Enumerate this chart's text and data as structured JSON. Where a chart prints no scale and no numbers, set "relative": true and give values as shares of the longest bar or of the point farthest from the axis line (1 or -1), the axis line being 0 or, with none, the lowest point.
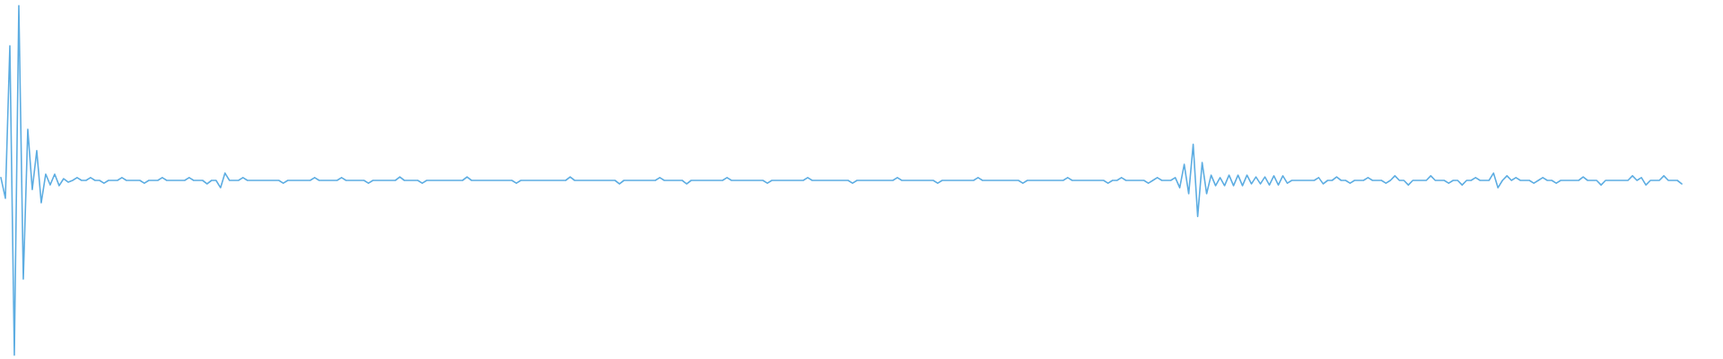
{
  "chart_data": {
    "type": "line",
    "relative": true,
    "categories": [
      null,
      null,
      null,
      null,
      null,
      null,
      null,
      null,
      null,
      null,
      null,
      null,
      null,
      null,
      null,
      null,
      null,
      null,
      null,
      null,
      null,
      null,
      null,
      null,
      null,
      null,
      null,
      null,
      null,
      null,
      null,
      null,
      null,
      null,
      null,
      null,
      null,
      null,
      null,
      null,
      null,
      null,
      null,
      null,
      null,
      null,
      null,
      null,
      null,
      null,
      null,
      null,
      null,
      null,
      null,
      null,
      null,
      null,
      null,
      null,
      null,
      null,
      null,
      null,
      null,
      null,
      null,
      null,
      null,
      null,
      null,
      null,
      null,
      null,
      null,
      null,
      null,
      null,
      null,
      null,
      null,
      null,
      null,
      null,
      null,
      null,
      null,
      null,
      null,
      null,
      null,
      null,
      null,
      null,
      null,
      null,
      null,
      null,
      null,
      null,
      null,
      null,
      null,
      null,
      null,
      null,
      null,
      null,
      null,
      null,
      null,
      null,
      null,
      null,
      null,
      null,
      null,
      null,
      null,
      null,
      null,
      null,
      null,
      null,
      null,
      null,
      null,
      null,
      null,
      null,
      null,
      null,
      null,
      null,
      null,
      null,
      null,
      null,
      null,
      null,
      null,
      null,
      null,
      null,
      null,
      null,
      null,
      null,
      null,
      null,
      null,
      null,
      null,
      null,
      null,
      null,
      null,
      null,
      null,
      null,
      null,
      null,
      null,
      null,
      null,
      null,
      null,
      null,
      null,
      null,
      null,
      null,
      null,
      null,
      null,
      null,
      null,
      null,
      null,
      null,
      null,
      null,
      null,
      null,
      null,
      null,
      null,
      null,
      null,
      null,
      null,
      null,
      null,
      null,
      null,
      null,
      null,
      null,
      null,
      null,
      null,
      null,
      null,
      null,
      null,
      null,
      null,
      null,
      null,
      null,
      null,
      null,
      null,
      null,
      null,
      null,
      null,
      null,
      null,
      null,
      null,
      null,
      null,
      null,
      null,
      null,
      null,
      null,
      null,
      null,
      null,
      null,
      null,
      null,
      null,
      null,
      null,
      null,
      null,
      null,
      null,
      null,
      null,
      null,
      null,
      null,
      null,
      null,
      null,
      null,
      null,
      null,
      null,
      null,
      null,
      null,
      null,
      null,
      null,
      null,
      null,
      null,
      null,
      null,
      null,
      null,
      null,
      null,
      null,
      null,
      null,
      null,
      null,
      null,
      null,
      null,
      null,
      null,
      null,
      null,
      null,
      null,
      null,
      null,
      null,
      null,
      null,
      null,
      null,
      null,
      null,
      null,
      null,
      null,
      null,
      null,
      null,
      null,
      null,
      null,
      null,
      null,
      null,
      null,
      null,
      null,
      null,
      null,
      null,
      null,
      null,
      null,
      null,
      null,
      null,
      null,
      null,
      null,
      null,
      null,
      null,
      null,
      null,
      null,
      null,
      null,
      null,
      null,
      null,
      null,
      null,
      null,
      null,
      null,
      null,
      null,
      null,
      null,
      null,
      null,
      null,
      null,
      null,
      null,
      null,
      null,
      null,
      null,
      null,
      null,
      null,
      null,
      null,
      null,
      null,
      null,
      null,
      null,
      null,
      null,
      null,
      null,
      null,
      null,
      null,
      null,
      null,
      null,
      null,
      null,
      null,
      null,
      null,
      null,
      null,
      null
    ],
    "series": [
      {
        "color": "#5dade2",
        "values": [
          0.508,
          0.449,
          0.885,
          0,
          1,
          0.218,
          0.646,
          0.474,
          0.585,
          0.436,
          0.518,
          0.487,
          0.518,
          0.485,
          0.505,
          0.495,
          0.5,
          0.508,
          0.5,
          0.5,
          0.508,
          0.5,
          0.5,
          0.492,
          0.5,
          0.5,
          0.5,
          0.508,
          0.5,
          0.5,
          0.5,
          0.5,
          0.492,
          0.5,
          0.5,
          0.5,
          0.508,
          0.5,
          0.5,
          0.5,
          0.5,
          0.5,
          0.508,
          0.5,
          0.5,
          0.5,
          0.49,
          0.5,
          0.5,
          0.479,
          0.521,
          0.5,
          0.5,
          0.5,
          0.508,
          0.5,
          0.5,
          0.5,
          0.5,
          0.5,
          0.5,
          0.5,
          0.5,
          0.492,
          0.5,
          0.5,
          0.5,
          0.5,
          0.5,
          0.5,
          0.508,
          0.5,
          0.5,
          0.5,
          0.5,
          0.5,
          0.508,
          0.5,
          0.5,
          0.5,
          0.5,
          0.5,
          0.492,
          0.5,
          0.5,
          0.5,
          0.5,
          0.5,
          0.5,
          0.51,
          0.5,
          0.5,
          0.5,
          0.5,
          0.492,
          0.5,
          0.5,
          0.5,
          0.5,
          0.5,
          0.5,
          0.5,
          0.5,
          0.5,
          0.51,
          0.5,
          0.5,
          0.5,
          0.5,
          0.5,
          0.5,
          0.5,
          0.5,
          0.5,
          0.5,
          0.492,
          0.5,
          0.5,
          0.5,
          0.5,
          0.5,
          0.5,
          0.5,
          0.5,
          0.5,
          0.5,
          0.5,
          0.51,
          0.5,
          0.5,
          0.5,
          0.5,
          0.5,
          0.5,
          0.5,
          0.5,
          0.5,
          0.5,
          0.49,
          0.5,
          0.5,
          0.5,
          0.5,
          0.5,
          0.5,
          0.5,
          0.5,
          0.508,
          0.5,
          0.5,
          0.5,
          0.5,
          0.5,
          0.49,
          0.5,
          0.5,
          0.5,
          0.5,
          0.5,
          0.5,
          0.5,
          0.5,
          0.508,
          0.5,
          0.5,
          0.5,
          0.5,
          0.5,
          0.5,
          0.5,
          0.5,
          0.492,
          0.5,
          0.5,
          0.5,
          0.5,
          0.5,
          0.5,
          0.5,
          0.5,
          0.508,
          0.5,
          0.5,
          0.5,
          0.5,
          0.5,
          0.5,
          0.5,
          0.5,
          0.5,
          0.492,
          0.5,
          0.5,
          0.5,
          0.5,
          0.5,
          0.5,
          0.5,
          0.5,
          0.5,
          0.508,
          0.5,
          0.5,
          0.5,
          0.5,
          0.5,
          0.5,
          0.5,
          0.5,
          0.492,
          0.5,
          0.5,
          0.5,
          0.5,
          0.5,
          0.5,
          0.5,
          0.5,
          0.508,
          0.5,
          0.5,
          0.5,
          0.5,
          0.5,
          0.5,
          0.5,
          0.5,
          0.5,
          0.492,
          0.5,
          0.5,
          0.5,
          0.5,
          0.5,
          0.5,
          0.5,
          0.5,
          0.5,
          0.508,
          0.5,
          0.5,
          0.5,
          0.5,
          0.5,
          0.5,
          0.5,
          0.5,
          0.492,
          0.5,
          0.5,
          0.508,
          0.5,
          0.5,
          0.5,
          0.5,
          0.5,
          0.492,
          0.5,
          0.508,
          0.5,
          0.5,
          0.5,
          0.508,
          0.479,
          0.546,
          0.462,
          0.603,
          0.397,
          0.551,
          0.462,
          0.515,
          0.485,
          0.508,
          0.485,
          0.515,
          0.485,
          0.515,
          0.485,
          0.515,
          0.49,
          0.51,
          0.49,
          0.51,
          0.487,
          0.513,
          0.487,
          0.513,
          0.492,
          0.5,
          0.5,
          0.5,
          0.5,
          0.5,
          0.5,
          0.508,
          0.49,
          0.5,
          0.5,
          0.51,
          0.5,
          0.5,
          0.492,
          0.5,
          0.5,
          0.5,
          0.508,
          0.5,
          0.5,
          0.5,
          0.492,
          0.5,
          0.513,
          0.5,
          0.5,
          0.487,
          0.5,
          0.5,
          0.5,
          0.5,
          0.513,
          0.5,
          0.5,
          0.5,
          0.492,
          0.5,
          0.5,
          0.487,
          0.5,
          0.5,
          0.508,
          0.5,
          0.5,
          0.5,
          0.521,
          0.479,
          0.5,
          0.513,
          0.5,
          0.508,
          0.5,
          0.5,
          0.5,
          0.492,
          0.5,
          0.508,
          0.5,
          0.5,
          0.492,
          0.5,
          0.5,
          0.5,
          0.5,
          0.5,
          0.51,
          0.5,
          0.5,
          0.5,
          0.487,
          0.5,
          0.5,
          0.5,
          0.5,
          0.5,
          0.5,
          0.513,
          0.5,
          0.508,
          0.487,
          0.5,
          0.5,
          0.5,
          0.513,
          0.5,
          0.5,
          0.5,
          0.49
        ]
      }
    ]
  }
}
